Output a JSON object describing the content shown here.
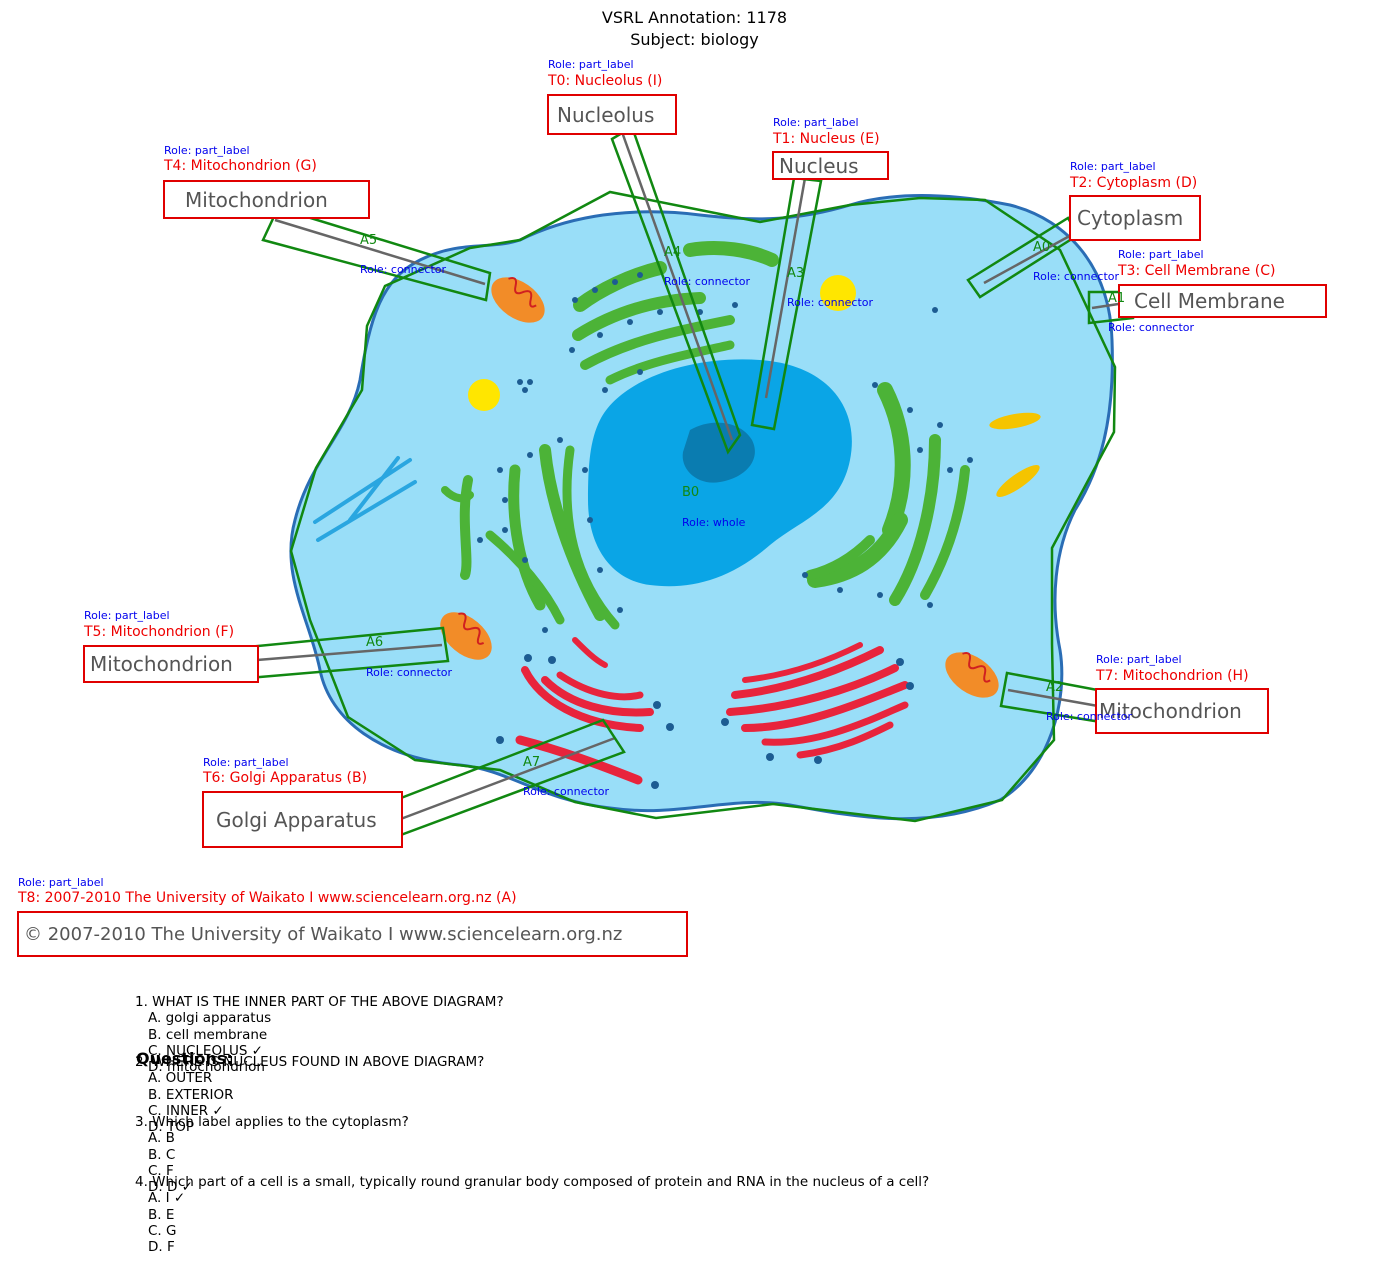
{
  "header": {
    "title": "VSRL Annotation: 1178",
    "subject": "Subject: biology"
  },
  "labels": [
    {
      "id": "T0",
      "role": "Role: part_label",
      "caption": "T0: Nucleolus (I)",
      "text": "Nucleolus"
    },
    {
      "id": "T1",
      "role": "Role: part_label",
      "caption": "T1: Nucleus (E)",
      "text": "Nucleus"
    },
    {
      "id": "T2",
      "role": "Role: part_label",
      "caption": "T2: Cytoplasm (D)",
      "text": "Cytoplasm"
    },
    {
      "id": "T3",
      "role": "Role: part_label",
      "caption": "T3: Cell Membrane (C)",
      "text": "Cell Membrane"
    },
    {
      "id": "T4",
      "role": "Role: part_label",
      "caption": "T4: Mitochondrion (G)",
      "text": "Mitochondrion"
    },
    {
      "id": "T5",
      "role": "Role: part_label",
      "caption": "T5: Mitochondrion (F)",
      "text": "Mitochondrion"
    },
    {
      "id": "T6",
      "role": "Role: part_label",
      "caption": "T6: Golgi Apparatus (B)",
      "text": "Golgi Apparatus"
    },
    {
      "id": "T7",
      "role": "Role: part_label",
      "caption": "T7: Mitochondrion (H)",
      "text": "Mitochondrion"
    },
    {
      "id": "T8",
      "role": "Role: part_label",
      "caption": "T8: 2007-2010 The University of Waikato I www.sciencelearn.org.nz (A)",
      "text": "© 2007-2010 The University of Waikato I www.sciencelearn.org.nz"
    }
  ],
  "connectors": [
    {
      "id": "A1",
      "role": "Role: connector"
    },
    {
      "id": "A2",
      "role": "Role: connector"
    },
    {
      "id": "A3",
      "role": "Role: connector"
    },
    {
      "id": "A4",
      "role": "Role: connector"
    },
    {
      "id": "A5",
      "role": "Role: connector"
    },
    {
      "id": "A6",
      "role": "Role: connector"
    },
    {
      "id": "A7",
      "role": "Role: connector"
    },
    {
      "id": "A0",
      "role": "Role: connector"
    }
  ],
  "whole": {
    "id": "B0",
    "role": "Role: whole"
  },
  "questions_heading": "Questions:",
  "questions": [
    {
      "q": "1. WHAT IS THE INNER PART OF THE ABOVE DIAGRAM?",
      "options": [
        "A. golgi apparatus",
        "B. cell membrane",
        "C. NUCLEOLUS ✓",
        "D. mitochondrion"
      ]
    },
    {
      "q": "2. WHERE IS NUCLEUS FOUND IN ABOVE DIAGRAM?",
      "options": [
        "A. OUTER",
        "B. EXTERIOR",
        "C. INNER ✓",
        "D. TOP"
      ]
    },
    {
      "q": "3. Which label applies to the cytoplasm?",
      "options": [
        "A. B",
        "B. C",
        "C. F",
        "D. D ✓"
      ]
    },
    {
      "q": "4. Which part of a cell is a small, typically round granular body composed of protein and RNA in the nucleus of a cell?",
      "options": [
        "A. I ✓",
        "B. E",
        "C. G",
        "D. F"
      ]
    }
  ],
  "colors": {
    "label_box": "#e00000",
    "connector_box": "#118811",
    "role_text": "#0000ee",
    "cytoplasm": "#99def8",
    "nucleus": "#0aa5e6",
    "er": "#4cb337",
    "golgi": "#e8243c",
    "mito": "#f28c28"
  }
}
